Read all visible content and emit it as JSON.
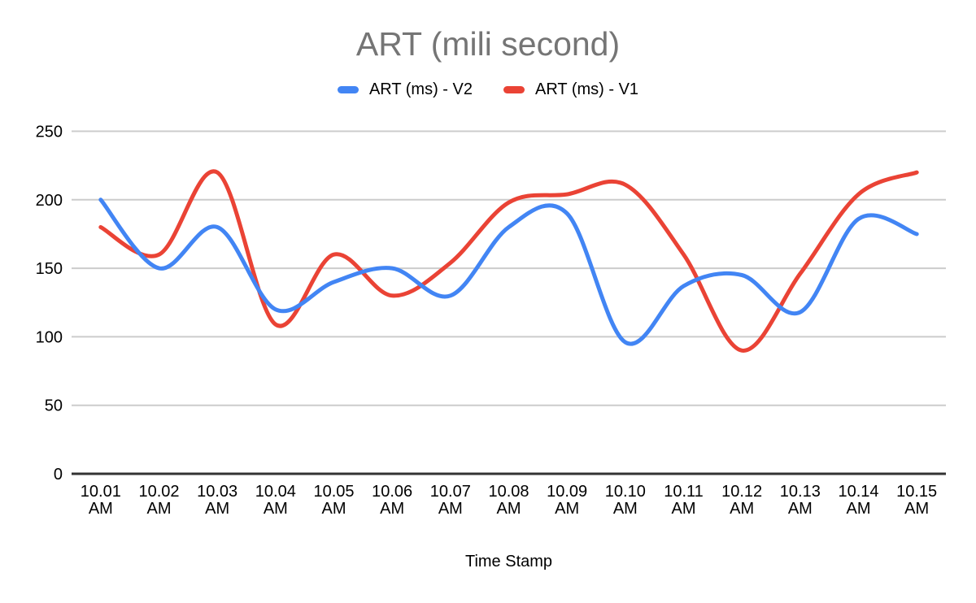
{
  "page": {
    "background": "#ffffff"
  },
  "chart_data": {
    "type": "line",
    "smooth": true,
    "title": "ART (mili second)",
    "title_color": "#757575",
    "xlabel": "Time Stamp",
    "ylabel": "",
    "ylim": [
      0,
      250
    ],
    "y_ticks": [
      0,
      50,
      100,
      150,
      200,
      250
    ],
    "grid": "horizontal",
    "legend_position": "top",
    "categories": [
      "10.01 AM",
      "10.02 AM",
      "10.03 AM",
      "10.04 AM",
      "10.05 AM",
      "10.06 AM",
      "10.07 AM",
      "10.08 AM",
      "10.09 AM",
      "10.10 AM",
      "10.11 AM",
      "10.12 AM",
      "10.13 AM",
      "10.14 AM",
      "10.15 AM"
    ],
    "x_tick_line1": [
      "10.01",
      "10.02",
      "10.03",
      "10.04",
      "10.05",
      "10.06",
      "10.07",
      "10.08",
      "10.09",
      "10.10",
      "10.11",
      "10.12",
      "10.13",
      "10.14",
      "10.15"
    ],
    "x_tick_line2": "AM",
    "series": [
      {
        "name": "ART (ms) - V2",
        "color": "#4285F4",
        "values": [
          200,
          150,
          180,
          120,
          140,
          150,
          130,
          180,
          190,
          96,
          137,
          145,
          118,
          186,
          175
        ]
      },
      {
        "name": "ART (ms) - V1",
        "color": "#EA4335",
        "values": [
          180,
          160,
          220,
          109,
          160,
          130,
          154,
          198,
          204,
          211,
          160,
          90,
          146,
          204,
          220
        ]
      }
    ],
    "colors": {
      "gridline": "#cccccc",
      "axis_line": "#333333",
      "tick_label": "#000000"
    }
  }
}
